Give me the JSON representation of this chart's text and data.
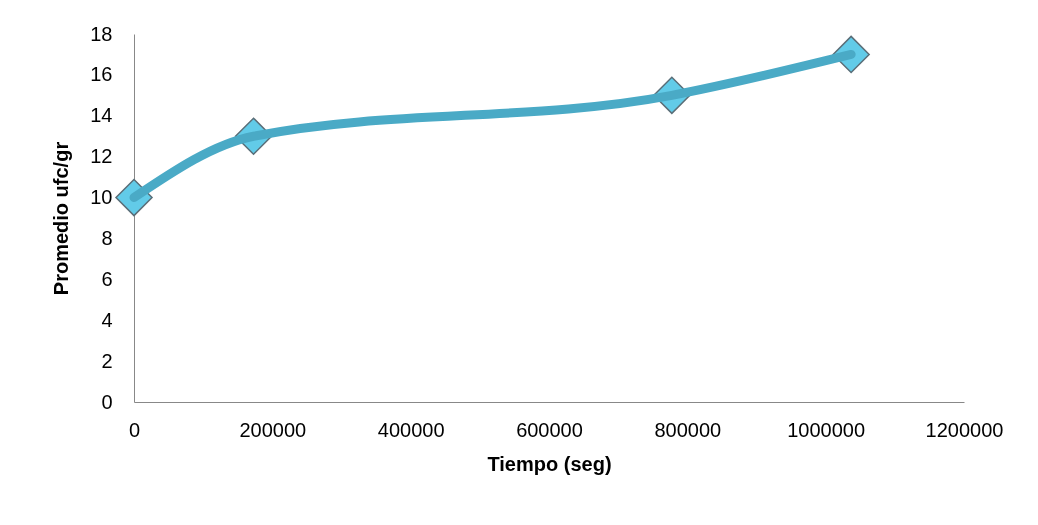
{
  "chart_data": {
    "type": "line",
    "xlabel": "Tiempo (seg)",
    "ylabel": "Promedio ufc/gr",
    "x": [
      0,
      172800,
      777600,
      1036800
    ],
    "series": [
      {
        "color": "#4aaac6",
        "values": [
          10,
          13,
          15,
          17
        ]
      }
    ],
    "xlim": [
      0,
      1200000
    ],
    "xticks": [
      0,
      200000,
      400000,
      600000,
      800000,
      1000000,
      1200000
    ],
    "ylim": [
      0,
      18
    ],
    "yticks": [
      0,
      2,
      4,
      6,
      8,
      10,
      12,
      14,
      16,
      18
    ],
    "grid": false,
    "marker": "diamond",
    "line_style": "solid"
  }
}
